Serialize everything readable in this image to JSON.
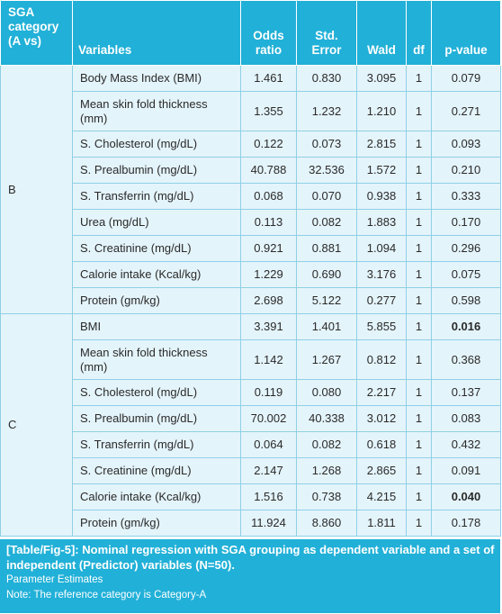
{
  "headers": {
    "group": "SGA category (A vs)",
    "variables": "Variables",
    "odds": "Odds ratio",
    "stderr": "Std. Error",
    "wald": "Wald",
    "df": "df",
    "pvalue": "p-value"
  },
  "groups": [
    {
      "label": "B",
      "rows": [
        {
          "variable": "Body Mass Index (BMI)",
          "odds": "1.461",
          "se": "0.830",
          "wald": "3.095",
          "df": "1",
          "p": "0.079",
          "bold": false
        },
        {
          "variable": "Mean skin fold thickness (mm)",
          "odds": "1.355",
          "se": "1.232",
          "wald": "1.210",
          "df": "1",
          "p": "0.271",
          "bold": false
        },
        {
          "variable": "S. Cholesterol (mg/dL)",
          "odds": "0.122",
          "se": "0.073",
          "wald": "2.815",
          "df": "1",
          "p": "0.093",
          "bold": false
        },
        {
          "variable": "S. Prealbumin (mg/dL)",
          "odds": "40.788",
          "se": "32.536",
          "wald": "1.572",
          "df": "1",
          "p": "0.210",
          "bold": false
        },
        {
          "variable": "S. Transferrin (mg/dL)",
          "odds": "0.068",
          "se": "0.070",
          "wald": "0.938",
          "df": "1",
          "p": "0.333",
          "bold": false
        },
        {
          "variable": "Urea (mg/dL)",
          "odds": "0.113",
          "se": "0.082",
          "wald": "1.883",
          "df": "1",
          "p": "0.170",
          "bold": false
        },
        {
          "variable": "S. Creatinine (mg/dL)",
          "odds": "0.921",
          "se": "0.881",
          "wald": "1.094",
          "df": "1",
          "p": "0.296",
          "bold": false
        },
        {
          "variable": "Calorie intake (Kcal/kg)",
          "odds": "1.229",
          "se": "0.690",
          "wald": "3.176",
          "df": "1",
          "p": "0.075",
          "bold": false
        },
        {
          "variable": "Protein (gm/kg)",
          "odds": "2.698",
          "se": "5.122",
          "wald": "0.277",
          "df": "1",
          "p": "0.598",
          "bold": false
        }
      ]
    },
    {
      "label": "C",
      "rows": [
        {
          "variable": "BMI",
          "odds": "3.391",
          "se": "1.401",
          "wald": "5.855",
          "df": "1",
          "p": "0.016",
          "bold": true
        },
        {
          "variable": "Mean skin fold thickness (mm)",
          "odds": "1.142",
          "se": "1.267",
          "wald": "0.812",
          "df": "1",
          "p": "0.368",
          "bold": false
        },
        {
          "variable": "S. Cholesterol (mg/dL)",
          "odds": "0.119",
          "se": "0.080",
          "wald": "2.217",
          "df": "1",
          "p": "0.137",
          "bold": false
        },
        {
          "variable": "S. Prealbumin (mg/dL)",
          "odds": "70.002",
          "se": "40.338",
          "wald": "3.012",
          "df": "1",
          "p": "0.083",
          "bold": false
        },
        {
          "variable": "S. Transferrin (mg/dL)",
          "odds": "0.064",
          "se": "0.082",
          "wald": "0.618",
          "df": "1",
          "p": "0.432",
          "bold": false
        },
        {
          "variable": "S. Creatinine (mg/dL)",
          "odds": "2.147",
          "se": "1.268",
          "wald": "2.865",
          "df": "1",
          "p": "0.091",
          "bold": false
        },
        {
          "variable": "Calorie intake (Kcal/kg)",
          "odds": "1.516",
          "se": "0.738",
          "wald": "4.215",
          "df": "1",
          "p": "0.040",
          "bold": true
        },
        {
          "variable": "Protein (gm/kg)",
          "odds": "11.924",
          "se": "8.860",
          "wald": "1.811",
          "df": "1",
          "p": "0.178",
          "bold": false
        }
      ]
    }
  ],
  "caption": {
    "main": "[Table/Fig-5]: Nominal regression with SGA grouping as dependent variable and a set of independent (Predictor) variables (N=50).",
    "line2": "Parameter Estimates",
    "line3": "Note: The reference category is Category-A"
  },
  "colors": {
    "header_bg": "#21b0d8",
    "row_bg": "#e4f4fb",
    "border": "#8fd0e7"
  }
}
